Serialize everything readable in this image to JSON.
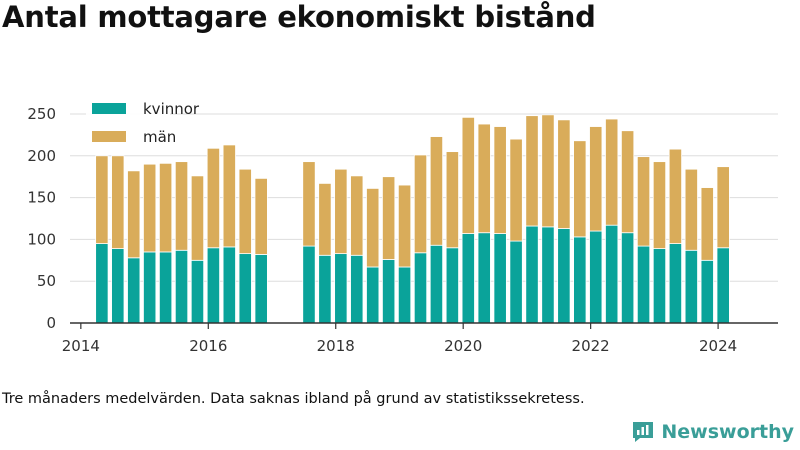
{
  "title": "Antal mottagare ekonomiskt bistånd",
  "note": "Tre månaders medelvärden. Data saknas ibland på grund av statistikssekretess.",
  "brand": {
    "name": "Newsworthy",
    "color": "#3a9e98"
  },
  "colors": {
    "kvinnor": "#0aa39a",
    "man": "#d9ac5a",
    "grid": "#dddddd",
    "axis": "#333333",
    "text": "#333333"
  },
  "chart_data": {
    "type": "bar",
    "stacked": true,
    "grid": true,
    "legend_position": "top-left",
    "ylim": [
      0,
      250
    ],
    "y_ticks": [
      0,
      50,
      100,
      150,
      200,
      250
    ],
    "x_ticks": [
      2014,
      2016,
      2018,
      2020,
      2022,
      2024
    ],
    "xlim": [
      2013.83,
      2024.94
    ],
    "legend": [
      "kvinnor",
      "män"
    ],
    "x": [
      2014.33,
      2014.58,
      2014.83,
      2015.08,
      2015.33,
      2015.58,
      2015.83,
      2016.08,
      2016.33,
      2016.58,
      2016.83,
      2017.58,
      2017.83,
      2018.08,
      2018.33,
      2018.58,
      2018.83,
      2019.08,
      2019.33,
      2019.58,
      2019.83,
      2020.08,
      2020.33,
      2020.58,
      2020.83,
      2021.08,
      2021.33,
      2021.58,
      2021.83,
      2022.08,
      2022.33,
      2022.58,
      2022.83,
      2023.08,
      2023.33,
      2023.58,
      2023.83,
      2024.08
    ],
    "series": [
      {
        "name": "kvinnor",
        "values": [
          95,
          89,
          78,
          85,
          85,
          87,
          75,
          90,
          91,
          83,
          82,
          92,
          81,
          83,
          81,
          67,
          76,
          67,
          84,
          93,
          90,
          107,
          108,
          107,
          98,
          116,
          115,
          113,
          103,
          110,
          117,
          108,
          92,
          89,
          95,
          87,
          75,
          90
        ]
      },
      {
        "name": "män",
        "values": [
          105,
          111,
          104,
          105,
          106,
          106,
          101,
          119,
          122,
          101,
          91,
          101,
          86,
          101,
          95,
          94,
          99,
          98,
          117,
          130,
          115,
          139,
          130,
          128,
          122,
          132,
          134,
          130,
          115,
          125,
          127,
          122,
          107,
          104,
          113,
          97,
          87,
          97
        ]
      }
    ]
  }
}
